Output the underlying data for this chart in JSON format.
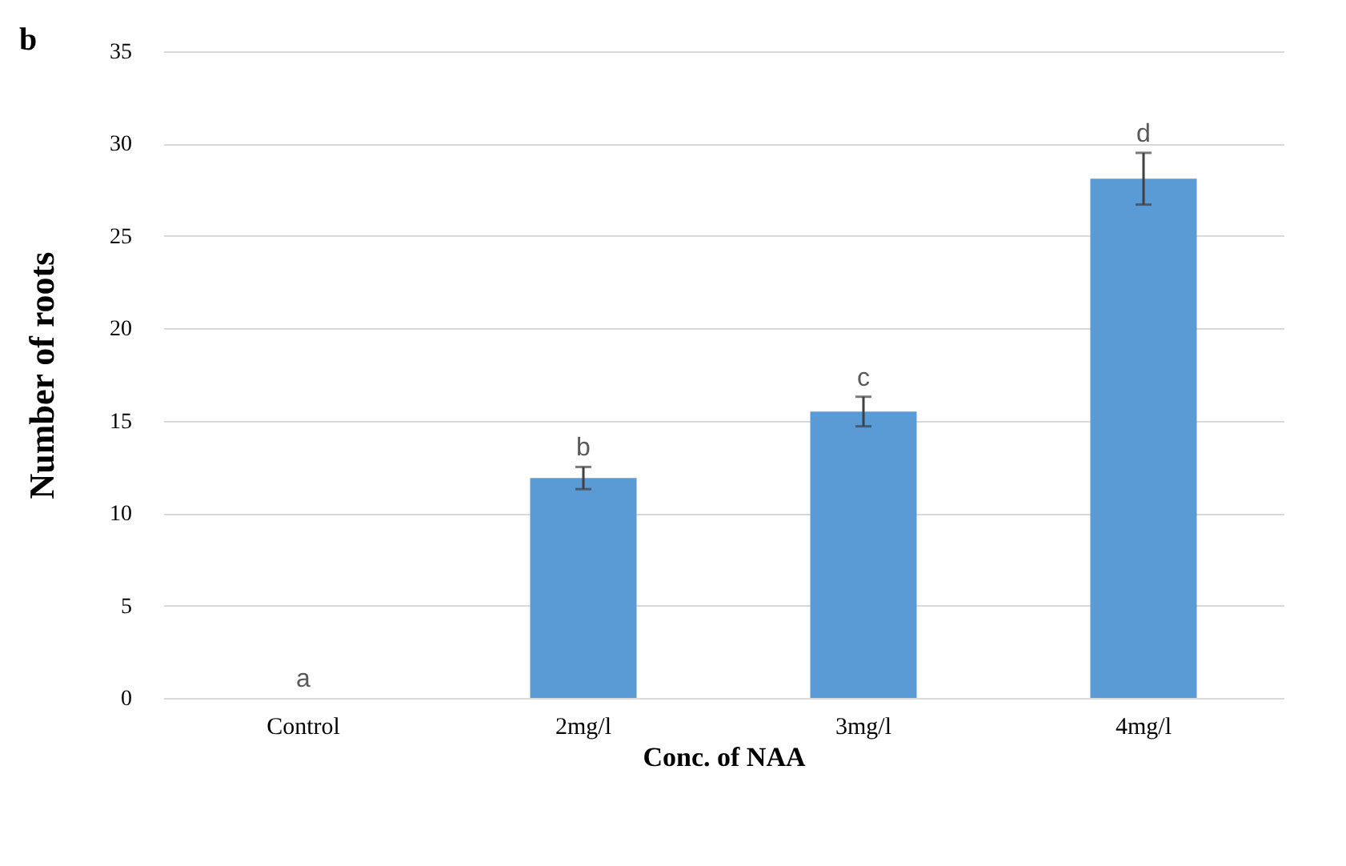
{
  "chart_data": {
    "type": "bar",
    "xlabel": "Conc. of NAA",
    "ylabel": "Number of roots",
    "categories": [
      "Control",
      "2mg/l",
      "3mg/l",
      "4mg/l"
    ],
    "values": [
      0,
      11.9,
      15.5,
      28.1
    ],
    "color": "#5b9bd5",
    "errors": [
      null,
      0.6,
      0.8,
      1.4
    ],
    "ylim": [
      0,
      35
    ],
    "yticks": [
      0,
      5,
      10,
      15,
      20,
      25,
      30,
      35
    ],
    "grid": "y",
    "annotations": [
      "b",
      "a",
      "b",
      "c",
      "d"
    ]
  }
}
